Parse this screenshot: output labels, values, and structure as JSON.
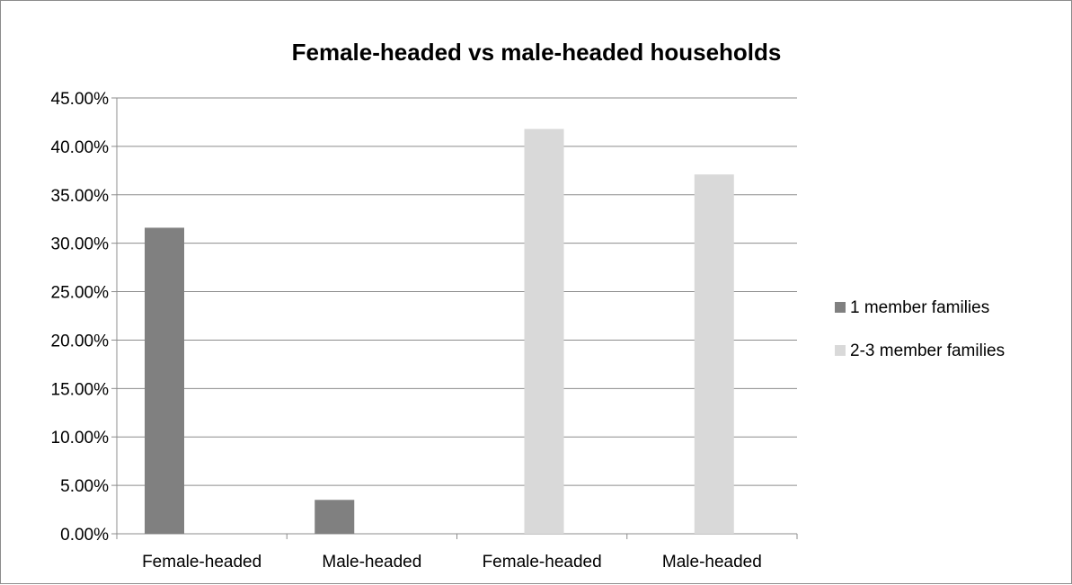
{
  "chart_data": {
    "type": "bar",
    "title": "Female-headed vs male-headed households",
    "xlabel": "",
    "ylabel": "",
    "categories": [
      "Female-headed",
      "Male-headed",
      "Female-headed",
      "Male-headed"
    ],
    "series": [
      {
        "name": "1 member families",
        "color": "#808080",
        "values": [
          31.6,
          3.5,
          null,
          null
        ]
      },
      {
        "name": "2-3 member families",
        "color": "#d9d9d9",
        "values": [
          null,
          null,
          41.8,
          37.1
        ]
      }
    ],
    "ylim": [
      0,
      45
    ],
    "y_ticks": [
      "0.00%",
      "5.00%",
      "10.00%",
      "15.00%",
      "20.00%",
      "25.00%",
      "30.00%",
      "35.00%",
      "40.00%",
      "45.00%"
    ],
    "y_tick_values": [
      0,
      5,
      10,
      15,
      20,
      25,
      30,
      35,
      40,
      45
    ],
    "grid": true,
    "legend_position": "right"
  }
}
